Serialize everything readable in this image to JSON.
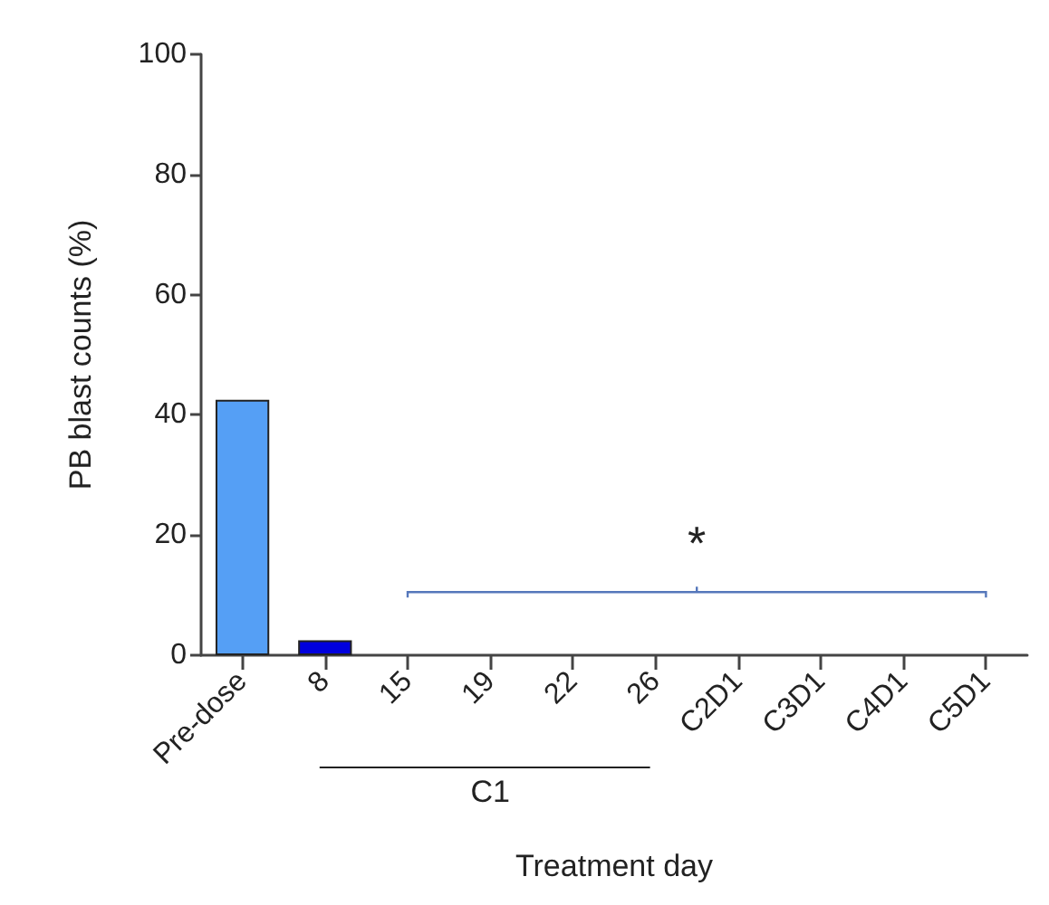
{
  "chart_data": {
    "type": "bar",
    "xlabel": "Treatment day",
    "ylabel": "PB blast counts (%)",
    "categories": [
      "Pre-dose",
      "8",
      "15",
      "19",
      "22",
      "26",
      "C2D1",
      "C3D1",
      "C4D1",
      "C5D1"
    ],
    "values": [
      42.5,
      2.5,
      0,
      0,
      0,
      0,
      0,
      0,
      0,
      0
    ],
    "colors": [
      "#559ff5",
      "#0000dd",
      "#559ff5",
      "#559ff5",
      "#559ff5",
      "#559ff5",
      "#559ff5",
      "#559ff5",
      "#559ff5",
      "#559ff5"
    ],
    "ylim": [
      0,
      100
    ],
    "yticks": [
      0,
      20,
      40,
      60,
      80,
      100
    ],
    "grid": false,
    "annotations": [
      "*",
      "C1"
    ]
  }
}
